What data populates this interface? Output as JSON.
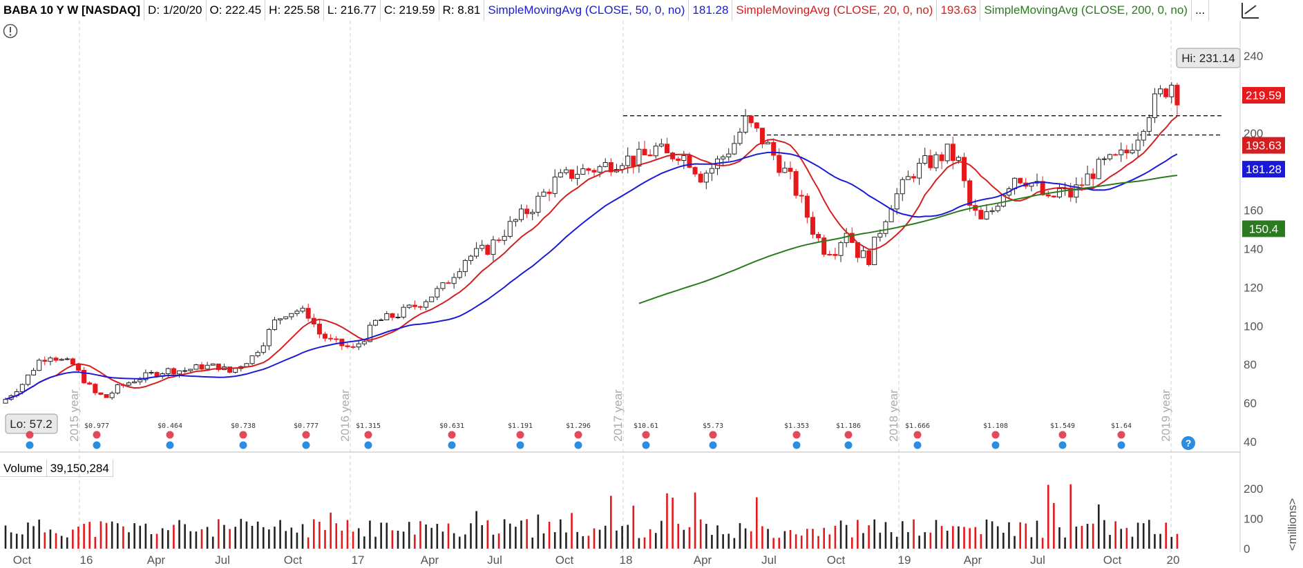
{
  "header": {
    "symbol": "BABA 10 Y W [NASDAQ]",
    "date": "D: 1/20/20",
    "open": "O: 222.45",
    "high": "H: 225.58",
    "low": "L: 216.77",
    "close": "C: 219.59",
    "range": "R: 8.81",
    "sma50_label": "SimpleMovingAvg (CLOSE, 50, 0, no)",
    "sma50_value": "181.28",
    "sma20_label": "SimpleMovingAvg (CLOSE, 20, 0, no)",
    "sma20_value": "193.63",
    "sma200_label": "SimpleMovingAvg (CLOSE, 200, 0, no)"
  },
  "volume": {
    "label": "Volume",
    "value": "39,150,284",
    "unit": "<millions>"
  },
  "colors": {
    "up": "#222222",
    "down": "#e5191c",
    "sma20": "#d31f1f",
    "sma50": "#1a1ad6",
    "sma200": "#2b7a1f"
  },
  "chart_data": {
    "type": "candlestick",
    "price_ticks": [
      "240",
      "220",
      "200",
      "180",
      "160",
      "140",
      "120",
      "100",
      "80",
      "60",
      "40"
    ],
    "ylim": [
      40,
      240
    ],
    "x_labels": [
      "Oct",
      "16",
      "Apr",
      "Jul",
      "Oct",
      "17",
      "Apr",
      "Jul",
      "Oct",
      "18",
      "Apr",
      "Jul",
      "Oct",
      "19",
      "Apr",
      "Jul",
      "Oct",
      "20"
    ],
    "year_markers": [
      "2015 year",
      "2016 year",
      "2017 year",
      "2018 year",
      "2019 year"
    ],
    "hi_label": "Hi: 231.14",
    "lo_label": "Lo: 57.2",
    "price_badges": [
      {
        "text": "219.59",
        "value": 219.59,
        "color": "#e5191c"
      },
      {
        "text": "193.63",
        "value": 193.63,
        "color": "#d31f1f"
      },
      {
        "text": "181.28",
        "value": 181.28,
        "color": "#1a1ad6"
      },
      {
        "text": "150.4",
        "value": 150.4,
        "color": "#2b7a1f"
      }
    ],
    "resistance_levels": [
      209,
      199
    ],
    "dividends": [
      "$0.977",
      "$0.464",
      "$0.738",
      "$0.777",
      "$1.315",
      "$0.631",
      "$1.191",
      "$1.296",
      "$10.61",
      "$5.73",
      "$1.353",
      "$1.186",
      "$1.666",
      "$1.108",
      "$1.549",
      "$1.64"
    ],
    "price_path": [
      [
        0,
        62
      ],
      [
        3,
        70
      ],
      [
        6,
        82
      ],
      [
        8,
        85
      ],
      [
        10,
        82
      ],
      [
        12,
        80
      ],
      [
        14,
        72
      ],
      [
        16,
        65
      ],
      [
        18,
        63
      ],
      [
        20,
        68
      ],
      [
        23,
        72
      ],
      [
        26,
        75
      ],
      [
        29,
        77
      ],
      [
        32,
        77
      ],
      [
        35,
        79
      ],
      [
        38,
        79
      ],
      [
        40,
        76
      ],
      [
        42,
        80
      ],
      [
        44,
        84
      ],
      [
        46,
        92
      ],
      [
        48,
        102
      ],
      [
        50,
        107
      ],
      [
        52,
        108
      ],
      [
        54,
        106
      ],
      [
        56,
        96
      ],
      [
        58,
        92
      ],
      [
        60,
        90
      ],
      [
        62,
        88
      ],
      [
        64,
        94
      ],
      [
        66,
        102
      ],
      [
        70,
        106
      ],
      [
        74,
        112
      ],
      [
        78,
        120
      ],
      [
        82,
        135
      ],
      [
        86,
        140
      ],
      [
        90,
        152
      ],
      [
        94,
        162
      ],
      [
        98,
        175
      ],
      [
        102,
        180
      ],
      [
        106,
        182
      ],
      [
        110,
        187
      ],
      [
        112,
        186
      ],
      [
        114,
        188
      ],
      [
        116,
        192
      ],
      [
        118,
        188
      ],
      [
        120,
        190
      ],
      [
        122,
        186
      ],
      [
        124,
        178
      ],
      [
        126,
        182
      ],
      [
        128,
        188
      ],
      [
        130,
        195
      ],
      [
        132,
        206
      ],
      [
        134,
        200
      ],
      [
        136,
        193
      ],
      [
        138,
        184
      ],
      [
        140,
        176
      ],
      [
        142,
        164
      ],
      [
        144,
        150
      ],
      [
        146,
        140
      ],
      [
        148,
        140
      ],
      [
        150,
        150
      ],
      [
        152,
        138
      ],
      [
        154,
        135
      ],
      [
        156,
        150
      ],
      [
        158,
        164
      ],
      [
        160,
        172
      ],
      [
        162,
        180
      ],
      [
        164,
        184
      ],
      [
        166,
        186
      ],
      [
        168,
        190
      ],
      [
        170,
        185
      ],
      [
        172,
        162
      ],
      [
        174,
        154
      ],
      [
        176,
        160
      ],
      [
        178,
        170
      ],
      [
        180,
        178
      ],
      [
        182,
        176
      ],
      [
        184,
        172
      ],
      [
        186,
        164
      ],
      [
        188,
        170
      ],
      [
        190,
        168
      ],
      [
        192,
        174
      ],
      [
        194,
        180
      ],
      [
        196,
        184
      ],
      [
        198,
        186
      ],
      [
        200,
        190
      ],
      [
        202,
        200
      ],
      [
        204,
        212
      ],
      [
        206,
        220
      ],
      [
        208,
        226
      ],
      [
        209,
        220
      ]
    ],
    "volume_ticks": [
      "200",
      "100",
      "0"
    ]
  }
}
